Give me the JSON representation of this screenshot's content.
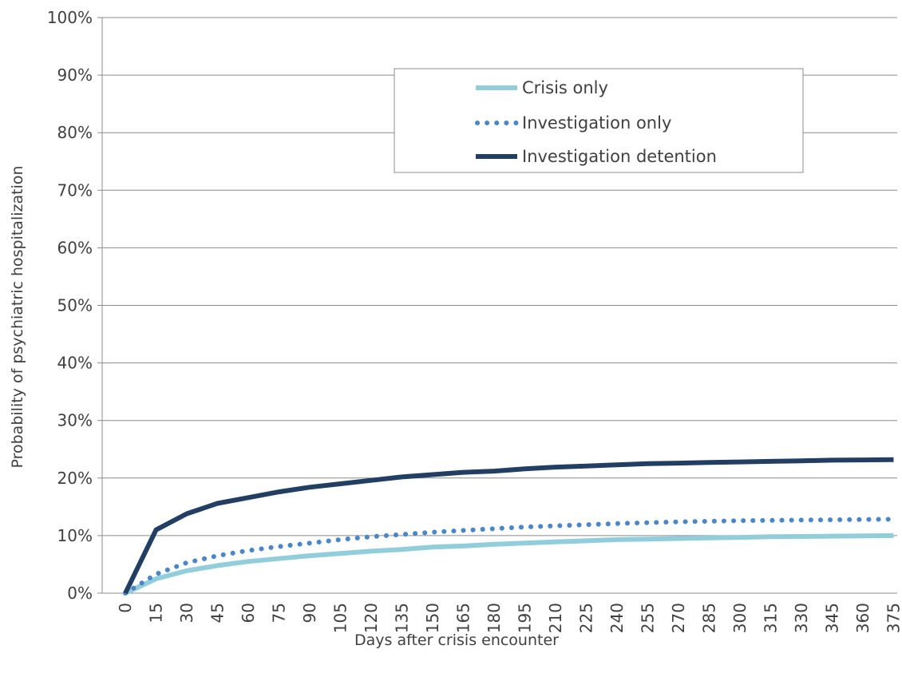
{
  "chart_data": {
    "type": "line",
    "xlabel": "Days after crisis encounter",
    "ylabel": "Probability of psychiatric hospitalization",
    "ylim": [
      0,
      100
    ],
    "y_ticks": [
      "0%",
      "10%",
      "20%",
      "30%",
      "40%",
      "50%",
      "60%",
      "70%",
      "80%",
      "90%",
      "100%"
    ],
    "x_ticks": [
      "0",
      "15",
      "30",
      "45",
      "60",
      "75",
      "90",
      "105",
      "120",
      "135",
      "150",
      "165",
      "180",
      "195",
      "210",
      "225",
      "240",
      "255",
      "270",
      "285",
      "300",
      "315",
      "330",
      "345",
      "360",
      "375"
    ],
    "x": [
      0,
      15,
      30,
      45,
      60,
      75,
      90,
      105,
      120,
      135,
      150,
      165,
      180,
      195,
      210,
      225,
      240,
      255,
      270,
      285,
      300,
      315,
      330,
      345,
      360,
      375
    ],
    "grid": "horizontal",
    "legend_position": "top-center",
    "series": [
      {
        "name": "Crisis only",
        "style": "solid-light",
        "color": "#92CDDC",
        "values": [
          0,
          2.5,
          3.9,
          4.8,
          5.5,
          6.0,
          6.5,
          6.9,
          7.3,
          7.6,
          8.0,
          8.2,
          8.5,
          8.7,
          8.9,
          9.1,
          9.3,
          9.4,
          9.5,
          9.6,
          9.7,
          9.8,
          9.85,
          9.9,
          9.95,
          10.0
        ]
      },
      {
        "name": "Investigation only",
        "style": "dotted",
        "color": "#4A86C8",
        "values": [
          0,
          3.3,
          5.3,
          6.5,
          7.4,
          8.1,
          8.7,
          9.3,
          9.8,
          10.2,
          10.6,
          10.9,
          11.2,
          11.5,
          11.7,
          11.9,
          12.1,
          12.25,
          12.4,
          12.5,
          12.6,
          12.65,
          12.7,
          12.75,
          12.8,
          12.85
        ]
      },
      {
        "name": "Investigation detention",
        "style": "solid-dark",
        "color": "#223F63",
        "values": [
          0,
          11.0,
          13.8,
          15.6,
          16.6,
          17.6,
          18.4,
          19.0,
          19.6,
          20.2,
          20.6,
          21.0,
          21.2,
          21.6,
          21.9,
          22.1,
          22.3,
          22.5,
          22.6,
          22.7,
          22.8,
          22.9,
          23.0,
          23.1,
          23.15,
          23.2
        ]
      }
    ]
  }
}
